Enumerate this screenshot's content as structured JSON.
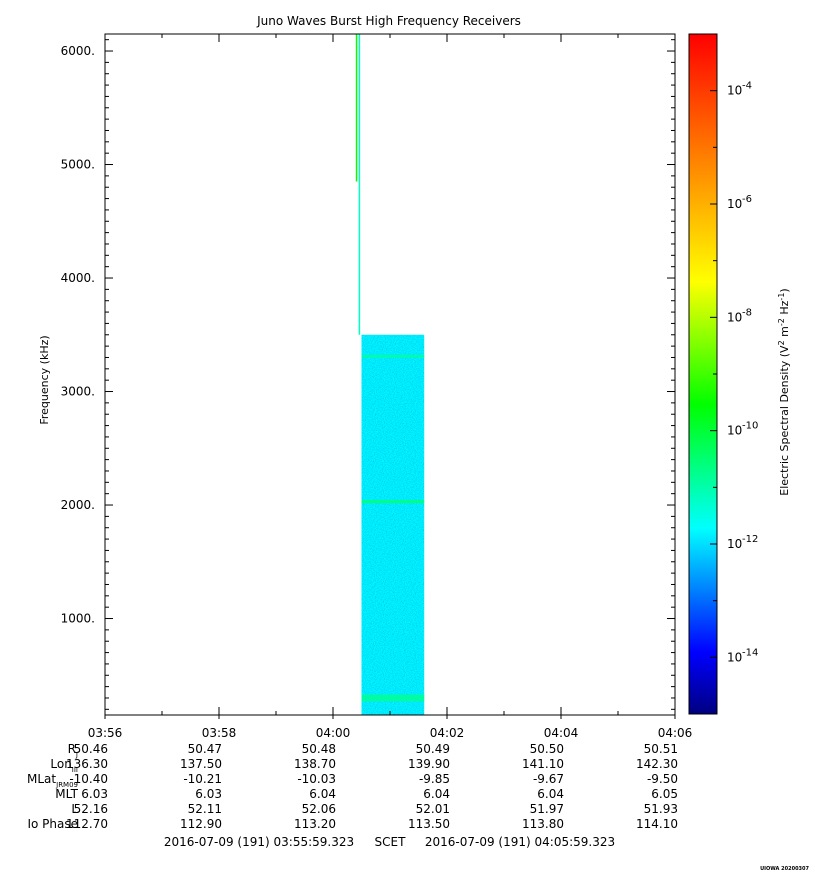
{
  "chart_data": {
    "type": "heatmap",
    "title": "Juno Waves Burst High Frequency Receivers",
    "ylabel": "Frequency (kHz)",
    "xlabel": "SCET",
    "colorbar": {
      "label_parts": [
        "Electric Spectral Density (V",
        "2",
        " m",
        "-2",
        " Hz",
        "-1",
        ")"
      ],
      "log_range": [
        -15,
        -3
      ],
      "colormap": [
        "#000080",
        "#0000ff",
        "#0080ff",
        "#00ffff",
        "#00ff80",
        "#00ff00",
        "#80ff00",
        "#ffff00",
        "#ffc000",
        "#ff8000",
        "#ff4000",
        "#ff0000"
      ],
      "ticks": [
        {
          "base": "10",
          "exp": "-4",
          "value": -4
        },
        {
          "base": "10",
          "exp": "-6",
          "value": -6
        },
        {
          "base": "10",
          "exp": "-8",
          "value": -8
        },
        {
          "base": "10",
          "exp": "-10",
          "value": -10
        },
        {
          "base": "10",
          "exp": "-12",
          "value": -12
        },
        {
          "base": "10",
          "exp": "-14",
          "value": -14
        }
      ]
    },
    "x_range_minutes": [
      0,
      10
    ],
    "y_range": [
      150,
      6150
    ],
    "y_ticks": [
      {
        "value": 1000,
        "label": "1000."
      },
      {
        "value": 2000,
        "label": "2000."
      },
      {
        "value": 3000,
        "label": "3000."
      },
      {
        "value": 4000,
        "label": "4000."
      },
      {
        "value": 5000,
        "label": "5000."
      },
      {
        "value": 6000,
        "label": "6000."
      }
    ],
    "x_ticks": [
      {
        "minute": 0,
        "label": "03:56"
      },
      {
        "minute": 2,
        "label": "03:58"
      },
      {
        "minute": 4,
        "label": "04:00"
      },
      {
        "minute": 6,
        "label": "04:02"
      },
      {
        "minute": 8,
        "label": "04:04"
      },
      {
        "minute": 10,
        "label": "04:06"
      }
    ],
    "data_block": {
      "t_start_minute": 4.5,
      "t_end_minute": 5.6,
      "f_min": 150,
      "f_max": 3500,
      "background_log_density": -11.8,
      "bands": [
        {
          "f": 300,
          "width": 60,
          "log_density": -10.8
        },
        {
          "f": 2030,
          "width": 30,
          "log_density": -10.6
        },
        {
          "f": 3310,
          "width": 25,
          "log_density": -10.9
        }
      ]
    },
    "data_spikes": [
      {
        "minute": 4.45,
        "f_min": 3500,
        "f_max": 6150,
        "log_density": -11.2
      },
      {
        "minute": 4.4,
        "f_min": 4850,
        "f_max": 6150,
        "log_density": -9.5
      }
    ],
    "ephemeris_row_labels": [
      {
        "main": "R",
        "sub": "J"
      },
      {
        "main": "Lon",
        "sub": "III"
      },
      {
        "main": "MLat",
        "sub": "JRM09"
      },
      {
        "main": "MLT",
        "sub": ""
      },
      {
        "main": "L",
        "sub": ""
      },
      {
        "main": "Io Phase",
        "sub": ""
      }
    ],
    "ephemeris_values": [
      [
        "50.46",
        "50.47",
        "50.48",
        "50.49",
        "50.50",
        "50.51"
      ],
      [
        "136.30",
        "137.50",
        "138.70",
        "139.90",
        "141.10",
        "142.30"
      ],
      [
        "-10.40",
        "-10.21",
        "-10.03",
        "-9.85",
        "-9.67",
        "-9.50"
      ],
      [
        "6.03",
        "6.03",
        "6.04",
        "6.04",
        "6.04",
        "6.05"
      ],
      [
        "52.16",
        "52.11",
        "52.06",
        "52.01",
        "51.97",
        "51.93"
      ],
      [
        "112.70",
        "112.90",
        "113.20",
        "113.50",
        "113.80",
        "114.10"
      ]
    ],
    "time_range_label": {
      "start": "2016-07-09 (191) 03:55:59.323",
      "mid": "SCET",
      "end": "2016-07-09 (191) 04:05:59.323"
    }
  },
  "footer": {
    "credit": "UIOWA 20200307"
  }
}
